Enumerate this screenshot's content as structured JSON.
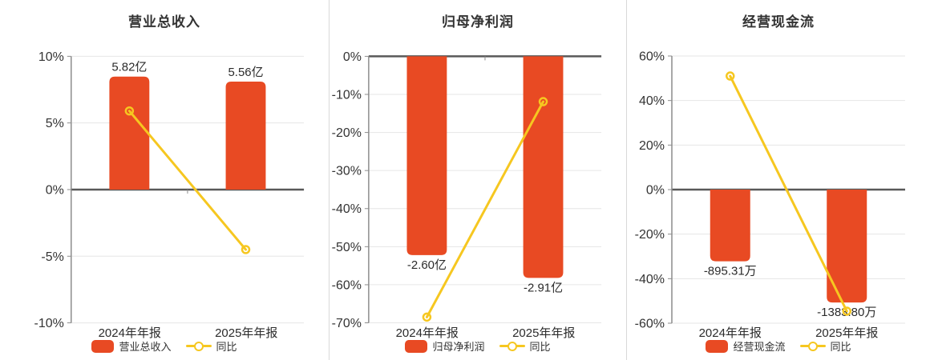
{
  "colors": {
    "bar": "#e84a23",
    "line": "#f6c720",
    "text": "#333333",
    "label_text": "#2b2b2b",
    "grid": "#e6e6e6",
    "zero_axis": "#595959",
    "axis": "#8c8c8c",
    "divider": "#d9d9d9",
    "background": "#ffffff"
  },
  "chart_data": [
    {
      "type": "bar",
      "title": "营业总收入",
      "categories": [
        "2024年年报",
        "2025年年报"
      ],
      "bar_series": {
        "name": "营业总收入",
        "value_labels": [
          "5.82亿",
          "5.56亿"
        ],
        "display_pct": [
          8.48,
          8.1
        ]
      },
      "line_series": {
        "name": "同比",
        "values_pct": [
          5.9,
          -4.5
        ]
      },
      "y_axis": {
        "tick_labels": [
          "10%",
          "5%",
          "0%",
          "-5%",
          "-10%"
        ],
        "tick_values": [
          10,
          5,
          0,
          -5,
          -10
        ],
        "max": 10,
        "min": -10
      },
      "legend_position": "bottom",
      "grid": true
    },
    {
      "type": "bar",
      "title": "归母净利润",
      "categories": [
        "2024年年报",
        "2025年年报"
      ],
      "bar_series": {
        "name": "归母净利润",
        "value_labels": [
          "-2.60亿",
          "-2.91亿"
        ],
        "display_pct": [
          -52.2,
          -58.2
        ]
      },
      "line_series": {
        "name": "同比",
        "values_pct": [
          -68.5,
          -11.9
        ]
      },
      "y_axis": {
        "tick_labels": [
          "0%",
          "-10%",
          "-20%",
          "-30%",
          "-40%",
          "-50%",
          "-60%",
          "-70%"
        ],
        "tick_values": [
          0,
          -10,
          -20,
          -30,
          -40,
          -50,
          -60,
          -70
        ],
        "max": 0,
        "min": -70
      },
      "legend_position": "bottom",
      "grid": true
    },
    {
      "type": "bar",
      "title": "经营现金流",
      "categories": [
        "2024年年报",
        "2025年年报"
      ],
      "bar_series": {
        "name": "经营现金流",
        "value_labels": [
          "-895.31万",
          "-1383.80万"
        ],
        "display_pct": [
          -32.2,
          -50.7
        ]
      },
      "line_series": {
        "name": "同比",
        "values_pct": [
          51,
          -54.6
        ]
      },
      "y_axis": {
        "tick_labels": [
          "60%",
          "40%",
          "20%",
          "0%",
          "-20%",
          "-40%",
          "-60%"
        ],
        "tick_values": [
          60,
          40,
          20,
          0,
          -20,
          -40,
          -60
        ],
        "max": 60,
        "min": -60
      },
      "legend_position": "bottom",
      "grid": true
    }
  ]
}
